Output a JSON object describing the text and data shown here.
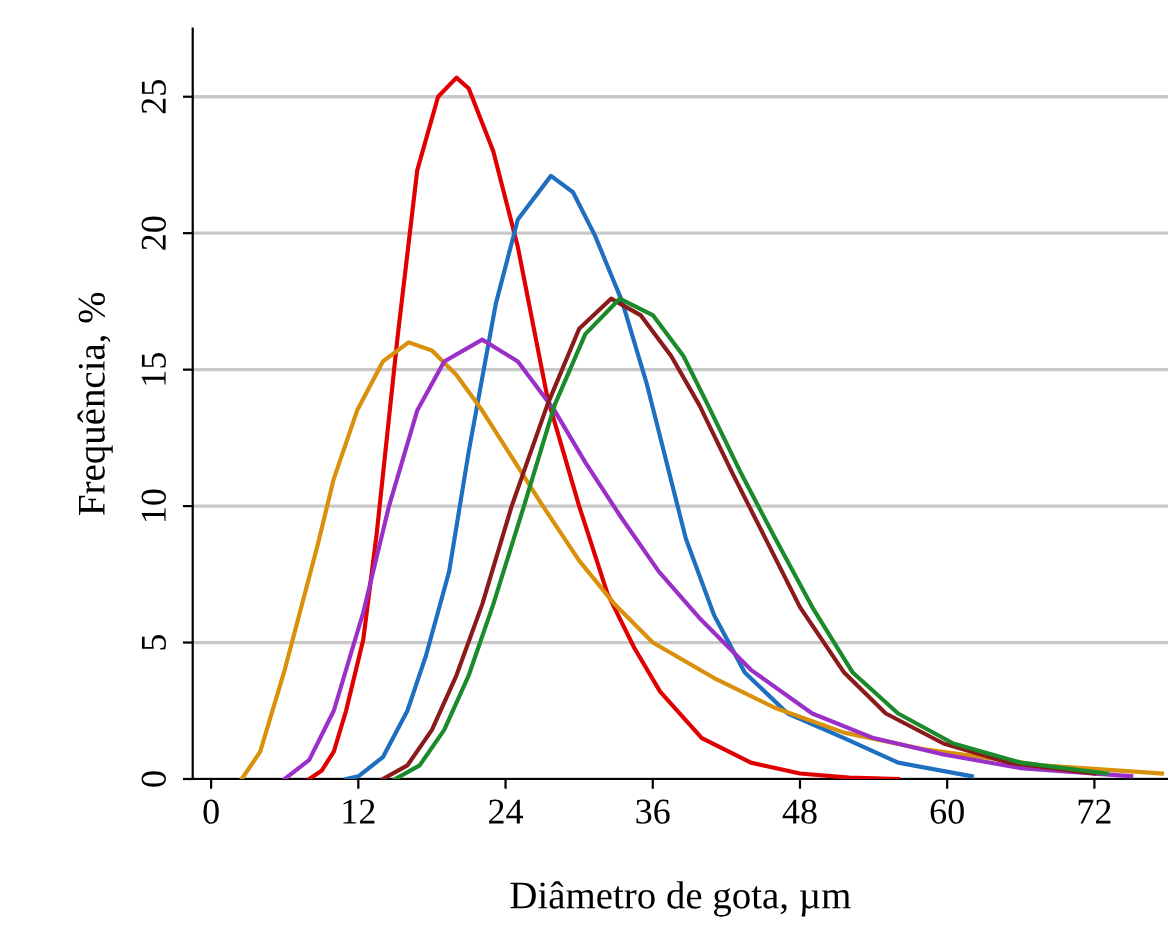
{
  "chart_data": {
    "type": "line",
    "xlabel": "Diâmetro de gota, µm",
    "ylabel": "Frequência, %",
    "xlim": [
      -1.5,
      78
    ],
    "ylim": [
      0,
      27.5
    ],
    "xticks": [
      0,
      12,
      24,
      36,
      48,
      60,
      72
    ],
    "yticks": [
      0,
      5,
      10,
      15,
      20,
      25
    ],
    "grid": "y",
    "legend": false,
    "marker": "none",
    "line_style": "solid",
    "series": [
      {
        "color": "#e00000",
        "x": [
          8,
          9,
          10,
          11,
          12.4,
          13.5,
          15.2,
          16.8,
          18.5,
          20,
          21,
          23,
          25,
          27.4,
          30,
          32.3,
          34.5,
          36.6,
          40,
          44,
          48,
          52,
          56
        ],
        "values": [
          0,
          0.3,
          1,
          2.5,
          5.1,
          9,
          16.2,
          22.3,
          25,
          25.7,
          25.3,
          23,
          19.5,
          14,
          10,
          6.8,
          4.8,
          3.2,
          1.5,
          0.6,
          0.2,
          0.05,
          0
        ]
      },
      {
        "color": "#1f6fc0",
        "x": [
          11,
          12,
          14,
          16,
          17.5,
          19.4,
          21,
          23.2,
          25,
          27.7,
          29.5,
          31.3,
          33.5,
          35.5,
          38.7,
          41,
          43.5,
          47,
          51.6,
          56,
          62
        ],
        "values": [
          0,
          0.1,
          0.8,
          2.5,
          4.5,
          7.6,
          12,
          17.4,
          20.5,
          22.1,
          21.5,
          19.9,
          17.5,
          14.5,
          8.8,
          6,
          3.9,
          2.4,
          1.5,
          0.6,
          0.1
        ]
      },
      {
        "color": "#d9900a",
        "x": [
          2.5,
          4,
          6,
          8.7,
          10,
          11.9,
          14,
          16.1,
          18,
          20,
          22.1,
          24.5,
          26.9,
          30,
          32.9,
          36,
          41,
          46,
          51.6,
          58,
          67.7,
          77.5
        ],
        "values": [
          0,
          1,
          4,
          8.6,
          11,
          13.5,
          15.3,
          16,
          15.7,
          14.8,
          13.5,
          11.8,
          10.1,
          8,
          6.4,
          5,
          3.7,
          2.6,
          1.7,
          1.1,
          0.5,
          0.2
        ]
      },
      {
        "color": "#9a30c8",
        "x": [
          6,
          8,
          10,
          12.4,
          14.5,
          16.8,
          19,
          22.1,
          25,
          28,
          30.5,
          33.4,
          36.5,
          39.8,
          44,
          49,
          54,
          59.7,
          66,
          75
        ],
        "values": [
          0,
          0.7,
          2.5,
          6.1,
          10,
          13.5,
          15.3,
          16.1,
          15.3,
          13.5,
          11.6,
          9.6,
          7.6,
          5.9,
          4,
          2.4,
          1.5,
          0.9,
          0.4,
          0.1
        ]
      },
      {
        "color": "#8b1a1a",
        "x": [
          14,
          16,
          18,
          20,
          22.1,
          24.5,
          27.4,
          30,
          32.6,
          35,
          37.5,
          39.8,
          42.5,
          45.2,
          48,
          51.6,
          55,
          59.7,
          65,
          72
        ],
        "values": [
          0,
          0.5,
          1.8,
          3.8,
          6.4,
          10,
          13.7,
          16.5,
          17.6,
          17,
          15.5,
          13.7,
          11.2,
          8.8,
          6.3,
          3.9,
          2.4,
          1.3,
          0.6,
          0.2
        ]
      },
      {
        "color": "#1a8a2a",
        "x": [
          15,
          17,
          19,
          21,
          23,
          25.5,
          28,
          30.5,
          33.3,
          36,
          38.5,
          40.5,
          43.2,
          46,
          49,
          52.3,
          56,
          60.5,
          66,
          73
        ],
        "values": [
          0,
          0.5,
          1.8,
          3.8,
          6.4,
          10,
          13.7,
          16.3,
          17.6,
          17,
          15.5,
          13.7,
          11.2,
          8.8,
          6.3,
          3.9,
          2.4,
          1.3,
          0.6,
          0.2
        ]
      }
    ]
  }
}
